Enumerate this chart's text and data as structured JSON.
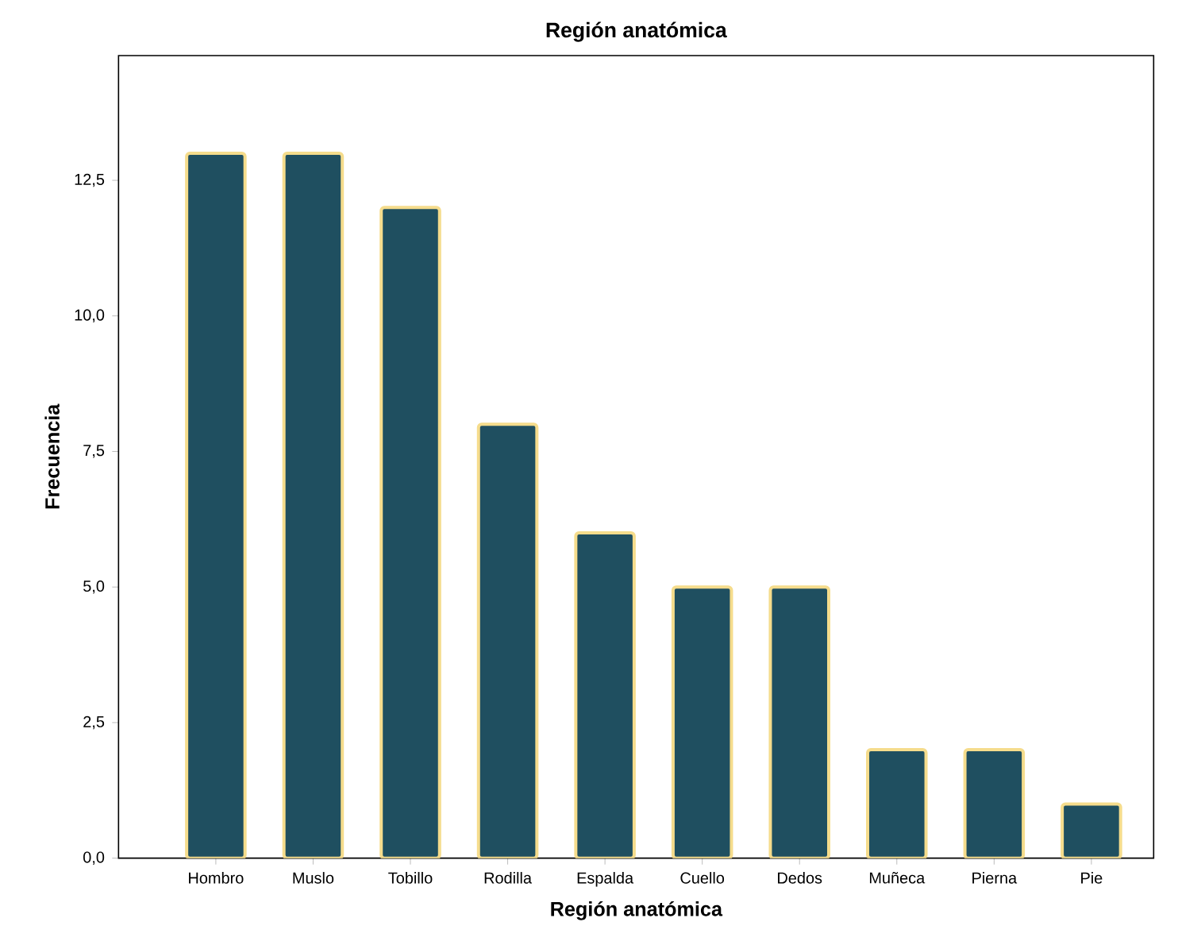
{
  "chart_data": {
    "type": "bar",
    "title": "Región anatómica",
    "xlabel": "Región anatómica",
    "ylabel": "Frecuencia",
    "categories": [
      "Hombro",
      "Muslo",
      "Tobillo",
      "Rodilla",
      "Espalda",
      "Cuello",
      "Dedos",
      "Muñeca",
      "Pierna",
      "Pie"
    ],
    "values": [
      13,
      13,
      12,
      8,
      6,
      5,
      5,
      2,
      2,
      1
    ],
    "color": "#1f4f60",
    "ylim": [
      0,
      14.8
    ],
    "yticks": [
      {
        "value": 0,
        "label": "0,0"
      },
      {
        "value": 2.5,
        "label": "2,5"
      },
      {
        "value": 5,
        "label": "5,0"
      },
      {
        "value": 7.5,
        "label": "7,5"
      },
      {
        "value": 10,
        "label": "10,0"
      },
      {
        "value": 12.5,
        "label": "12,5"
      }
    ],
    "grid": false
  }
}
